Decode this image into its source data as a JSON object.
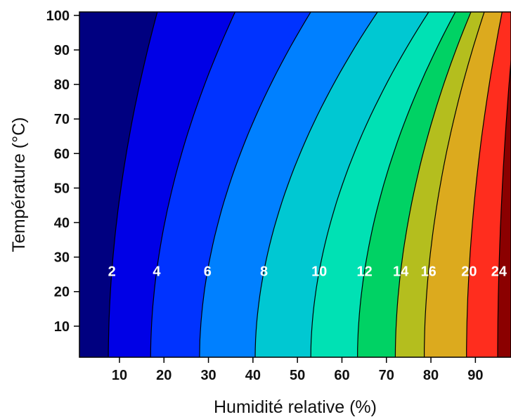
{
  "chart_data": {
    "type": "contour",
    "title": "",
    "xlabel": "Humidité relative (%)",
    "ylabel": "Température (°C)",
    "xlim": [
      1,
      98
    ],
    "ylim": [
      1,
      101
    ],
    "xticks": [
      10,
      20,
      30,
      40,
      50,
      60,
      70,
      80,
      90
    ],
    "yticks": [
      10,
      20,
      30,
      40,
      50,
      60,
      70,
      80,
      90,
      100
    ],
    "grid": false,
    "contour_levels": [
      2,
      4,
      6,
      8,
      10,
      12,
      14,
      16,
      20,
      24
    ],
    "contour_lines": [
      {
        "level": 2,
        "x_at_bottom": 7.5,
        "x_at_top": 18.5
      },
      {
        "level": 4,
        "x_at_bottom": 17,
        "x_at_top": 36
      },
      {
        "level": 6,
        "x_at_bottom": 28,
        "x_at_top": 53
      },
      {
        "level": 8,
        "x_at_bottom": 40.5,
        "x_at_top": 68
      },
      {
        "level": 10,
        "x_at_bottom": 53,
        "x_at_top": 79.5
      },
      {
        "level": 12,
        "x_at_bottom": 63.5,
        "x_at_top": 85.5
      },
      {
        "level": 14,
        "x_at_bottom": 72,
        "x_at_top": 89
      },
      {
        "level": 16,
        "x_at_bottom": 78.5,
        "x_at_top": 92
      },
      {
        "level": 20,
        "x_at_bottom": 88,
        "x_at_top": 96
      },
      {
        "level": 24,
        "x_at_bottom": 95,
        "x_at_top": 99
      }
    ],
    "band_colors": [
      "#000080",
      "#0000e6",
      "#0033ff",
      "#0080ff",
      "#00c8d2",
      "#00e1b4",
      "#00d264",
      "#b4be1e",
      "#dcaa1e",
      "#ff2d1e",
      "#8b0000"
    ],
    "label_y": 26
  }
}
